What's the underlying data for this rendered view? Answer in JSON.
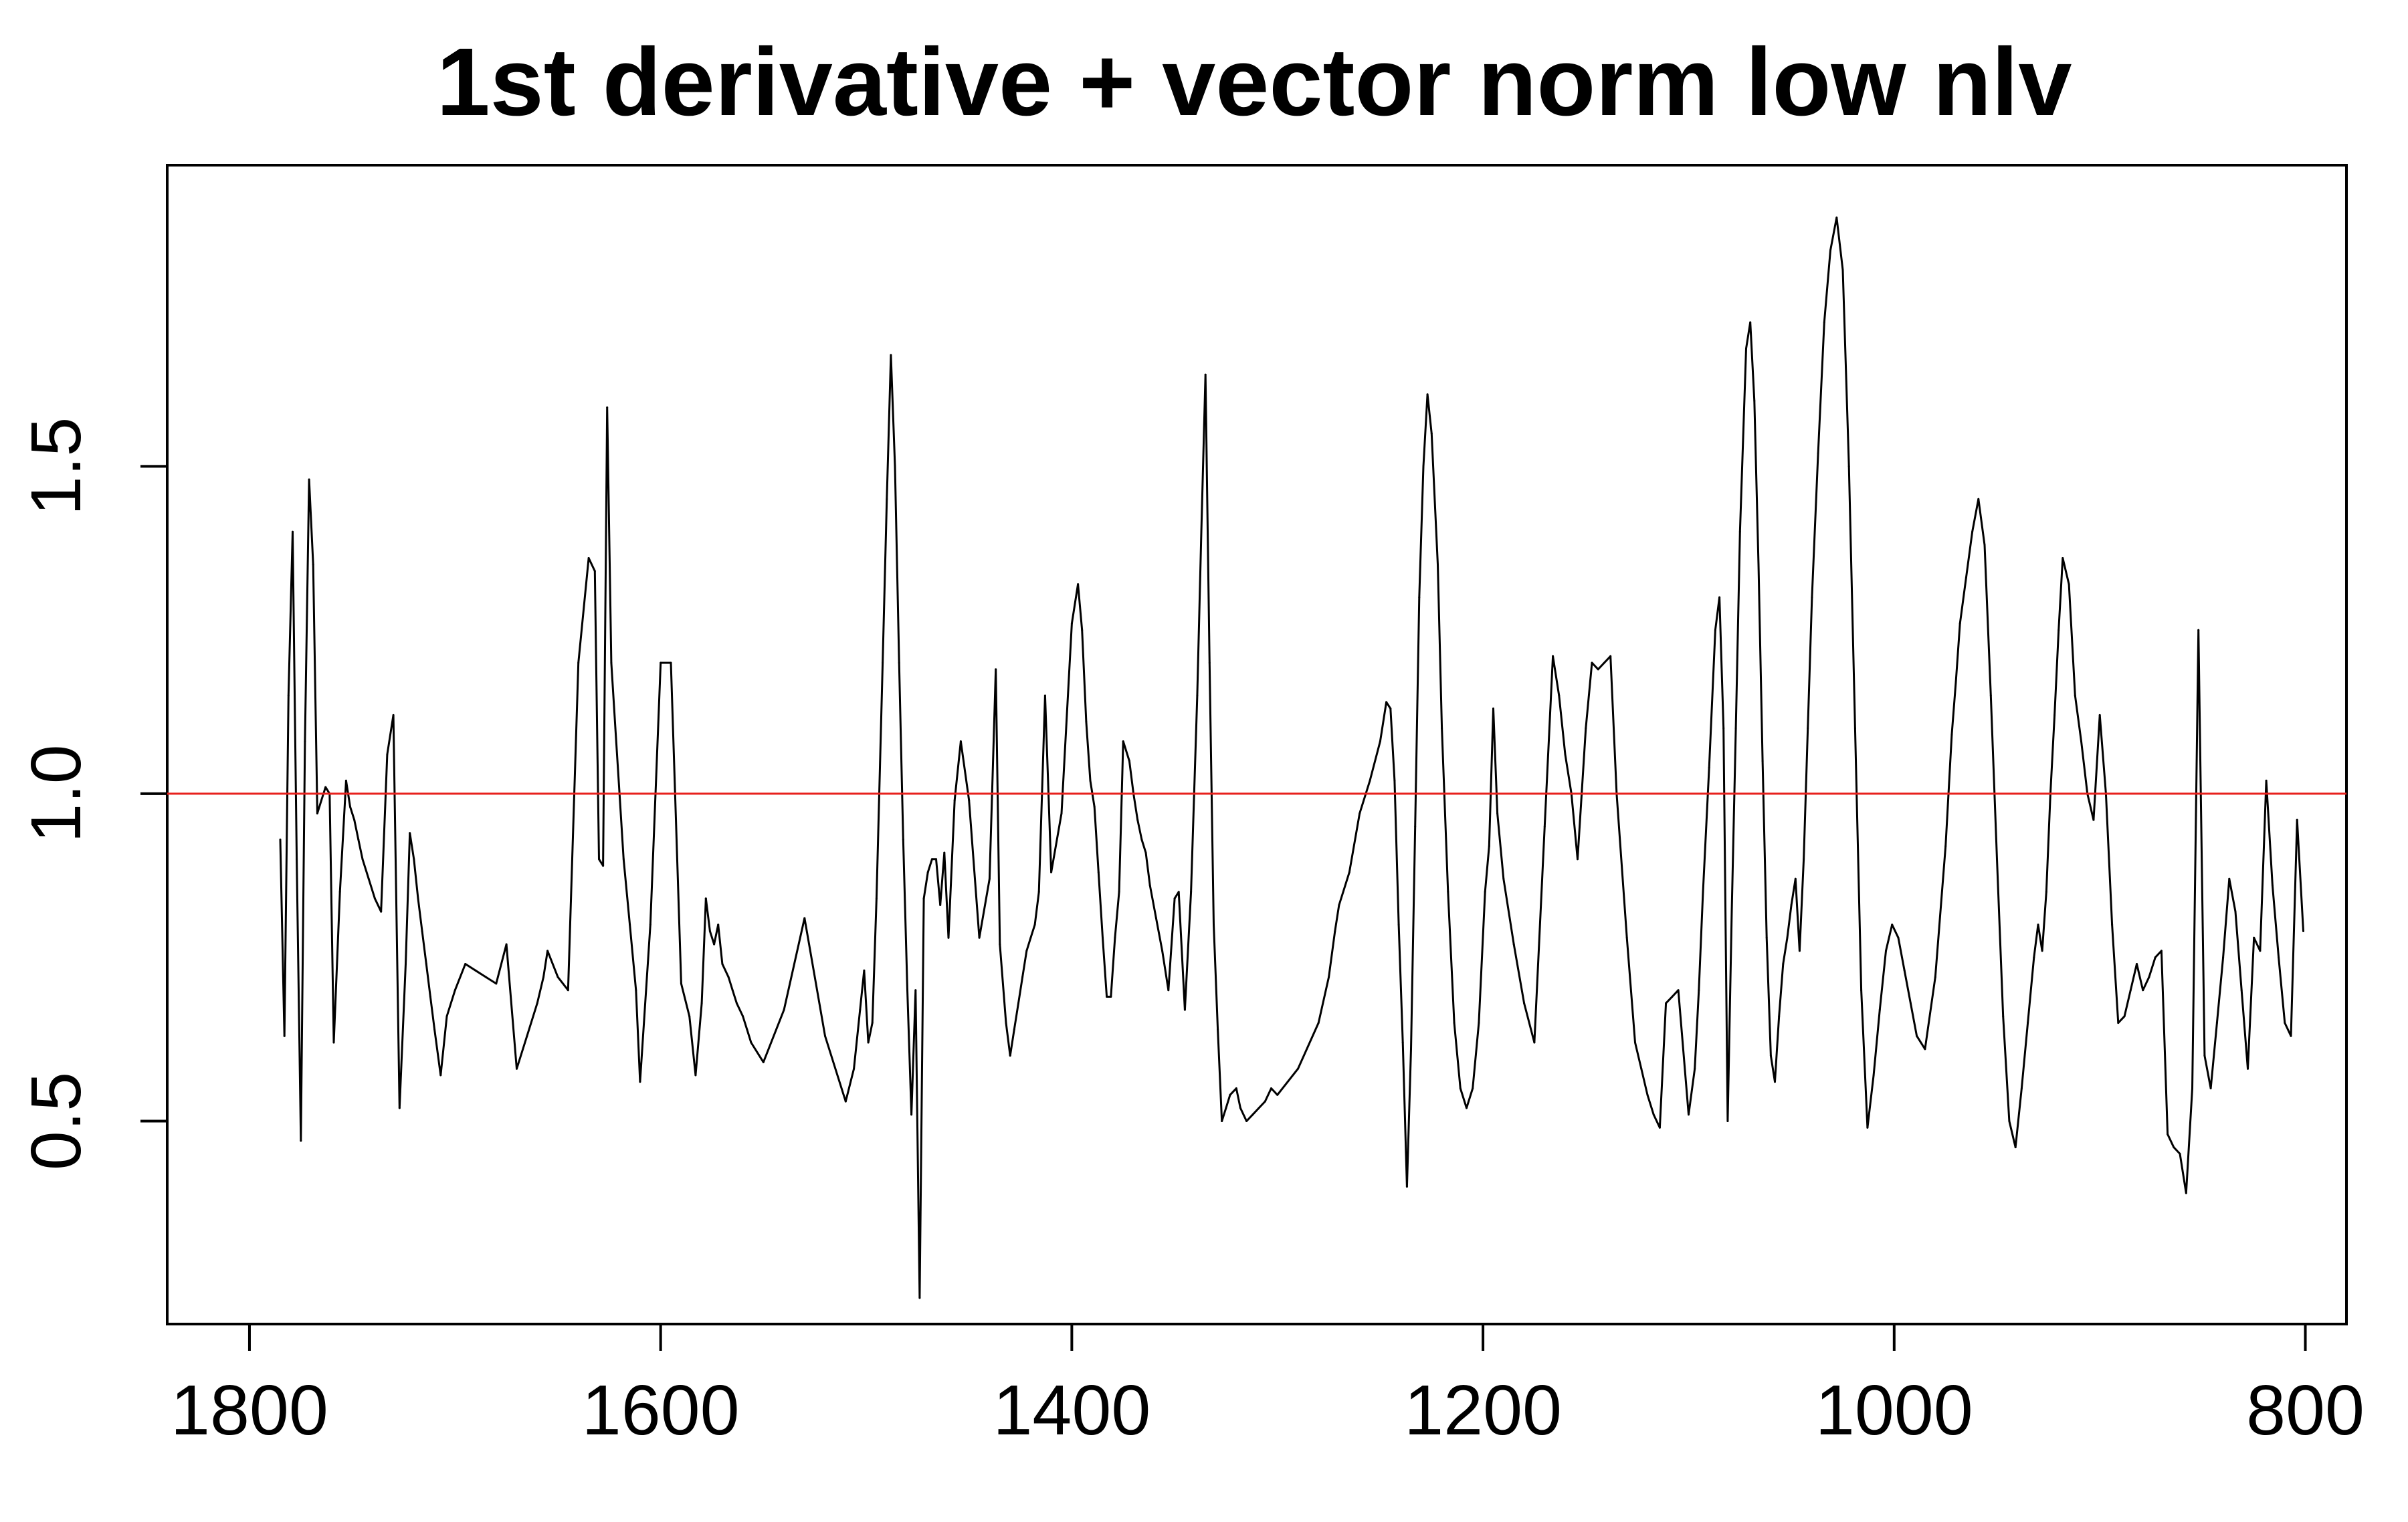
{
  "chart_data": {
    "type": "line",
    "title": "1st derivative + vector norm low nlv",
    "xlabel": "",
    "ylabel": "",
    "xlim": [
      1840,
      780
    ],
    "ylim": [
      0.19,
      1.96
    ],
    "x_reversed": true,
    "x_ticks": [
      1800,
      1600,
      1400,
      1200,
      1000,
      800
    ],
    "x_tick_labels": [
      "1800",
      "1600",
      "1400",
      "1200",
      "1000",
      "800"
    ],
    "y_ticks": [
      0.5,
      1.0,
      1.5
    ],
    "y_tick_labels": [
      "0.5",
      "1.0",
      "1.5"
    ],
    "grid": false,
    "reference_line": {
      "y": 1.0,
      "color": "#e8211d"
    },
    "line_color": "#000000",
    "series": [
      {
        "x": [
          1785,
          1783,
          1781,
          1779,
          1777,
          1775,
          1773,
          1771,
          1769,
          1767,
          1765,
          1763,
          1761,
          1759,
          1756,
          1753,
          1751,
          1749,
          1747,
          1745,
          1742,
          1739,
          1736,
          1733,
          1730,
          1727,
          1724,
          1722,
          1720,
          1718,
          1716,
          1714,
          1712,
          1710,
          1707,
          1704,
          1700,
          1695,
          1690,
          1685,
          1680,
          1675,
          1670,
          1665,
          1660,
          1657,
          1655,
          1650,
          1645,
          1640,
          1635,
          1632,
          1630,
          1628,
          1626,
          1624,
          1622,
          1620,
          1618,
          1615,
          1612,
          1610,
          1605,
          1600,
          1595,
          1590,
          1586,
          1583,
          1580,
          1578,
          1576,
          1574,
          1572,
          1570,
          1567,
          1565,
          1563,
          1560,
          1558,
          1556,
          1550,
          1540,
          1530,
          1520,
          1510,
          1506,
          1503,
          1501,
          1499,
          1497,
          1495,
          1492,
          1490,
          1488,
          1486,
          1484,
          1482,
          1480,
          1478,
          1476,
          1474,
          1472,
          1470,
          1468,
          1466,
          1464,
          1462,
          1460,
          1457,
          1454,
          1450,
          1445,
          1440,
          1437,
          1435,
          1432,
          1430,
          1428,
          1426,
          1424,
          1422,
          1420,
          1418,
          1416,
          1413,
          1410,
          1405,
          1400,
          1397,
          1395,
          1393,
          1391,
          1389,
          1387,
          1385,
          1383,
          1381,
          1379,
          1377,
          1375,
          1372,
          1370,
          1368,
          1366,
          1364,
          1362,
          1359,
          1356,
          1353,
          1350,
          1348,
          1345,
          1342,
          1339,
          1337,
          1335,
          1333,
          1331,
          1329,
          1327,
          1325,
          1323,
          1320,
          1318,
          1315,
          1312,
          1309,
          1306,
          1303,
          1300,
          1290,
          1280,
          1275,
          1272,
          1270,
          1265,
          1260,
          1255,
          1250,
          1247,
          1245,
          1243,
          1241,
          1239,
          1237,
          1235,
          1233,
          1231,
          1229,
          1227,
          1225,
          1222,
          1220,
          1217,
          1214,
          1211,
          1208,
          1205,
          1202,
          1199,
          1197,
          1195,
          1193,
          1190,
          1185,
          1180,
          1175,
          1170,
          1166,
          1163,
          1160,
          1157,
          1154,
          1150,
          1147,
          1144,
          1141,
          1138,
          1135,
          1130,
          1126,
          1123,
          1120,
          1117,
          1114,
          1111,
          1108,
          1105,
          1100,
          1097,
          1095,
          1093,
          1090,
          1087,
          1085,
          1083,
          1081,
          1079,
          1077,
          1075,
          1072,
          1070,
          1068,
          1066,
          1064,
          1062,
          1060,
          1058,
          1056,
          1054,
          1052,
          1050,
          1048,
          1046,
          1044,
          1042,
          1040,
          1037,
          1034,
          1031,
          1028,
          1025,
          1022,
          1019,
          1016,
          1013,
          1010,
          1007,
          1004,
          1001,
          998,
          995,
          992,
          989,
          985,
          980,
          975,
          972,
          970,
          968,
          965,
          962,
          959,
          956,
          953,
          950,
          947,
          944,
          941,
          938,
          935,
          932,
          930,
          928,
          926,
          924,
          922,
          920,
          918,
          915,
          912,
          909,
          906,
          903,
          900,
          897,
          894,
          891,
          888,
          885,
          882,
          879,
          876,
          873,
          870,
          867,
          864,
          861,
          858,
          855,
          852,
          849,
          846,
          843,
          840,
          837,
          834,
          831,
          828,
          825,
          822,
          819,
          816,
          813,
          810,
          807,
          804,
          801
        ],
        "values": [
          0.93,
          0.63,
          1.15,
          1.4,
          0.9,
          0.47,
          1.08,
          1.48,
          1.35,
          0.97,
          0.99,
          1.01,
          1.0,
          0.62,
          0.85,
          1.02,
          0.98,
          0.96,
          0.93,
          0.9,
          0.87,
          0.84,
          0.82,
          1.06,
          1.12,
          0.52,
          0.74,
          0.94,
          0.9,
          0.84,
          0.79,
          0.74,
          0.69,
          0.64,
          0.57,
          0.66,
          0.7,
          0.74,
          0.73,
          0.72,
          0.71,
          0.77,
          0.58,
          0.63,
          0.68,
          0.72,
          0.76,
          0.72,
          0.7,
          1.2,
          1.36,
          1.34,
          0.9,
          0.89,
          1.59,
          1.2,
          1.1,
          1.0,
          0.9,
          0.8,
          0.7,
          0.56,
          0.8,
          1.2,
          1.2,
          0.71,
          0.66,
          0.57,
          0.68,
          0.84,
          0.79,
          0.77,
          0.8,
          0.74,
          0.72,
          0.7,
          0.68,
          0.66,
          0.64,
          0.62,
          0.59,
          0.67,
          0.81,
          0.63,
          0.53,
          0.58,
          0.67,
          0.73,
          0.62,
          0.65,
          0.84,
          1.2,
          1.45,
          1.67,
          1.5,
          1.2,
          0.93,
          0.7,
          0.51,
          0.7,
          0.23,
          0.84,
          0.88,
          0.9,
          0.9,
          0.83,
          0.91,
          0.78,
          0.99,
          1.08,
          0.99,
          0.78,
          0.87,
          1.19,
          0.77,
          0.65,
          0.6,
          0.64,
          0.68,
          0.72,
          0.76,
          0.78,
          0.8,
          0.85,
          1.15,
          0.88,
          0.97,
          1.26,
          1.32,
          1.25,
          1.11,
          1.02,
          0.98,
          0.88,
          0.78,
          0.69,
          0.69,
          0.78,
          0.85,
          1.08,
          1.05,
          1.0,
          0.96,
          0.93,
          0.91,
          0.86,
          0.81,
          0.76,
          0.7,
          0.84,
          0.85,
          0.67,
          0.85,
          1.15,
          1.4,
          1.64,
          1.2,
          0.8,
          0.64,
          0.5,
          0.52,
          0.54,
          0.55,
          0.52,
          0.5,
          0.51,
          0.52,
          0.53,
          0.55,
          0.54,
          0.58,
          0.65,
          0.72,
          0.79,
          0.83,
          0.88,
          0.97,
          1.02,
          1.08,
          1.14,
          1.13,
          1.02,
          0.8,
          0.62,
          0.4,
          0.61,
          0.95,
          1.3,
          1.5,
          1.61,
          1.55,
          1.35,
          1.1,
          0.85,
          0.65,
          0.55,
          0.52,
          0.55,
          0.65,
          0.85,
          0.92,
          1.13,
          0.97,
          0.87,
          0.77,
          0.68,
          0.62,
          0.95,
          1.21,
          1.15,
          1.06,
          1.0,
          0.9,
          1.1,
          1.2,
          1.19,
          1.2,
          1.21,
          1.0,
          0.78,
          0.62,
          0.58,
          0.54,
          0.51,
          0.49,
          0.68,
          0.69,
          0.7,
          0.51,
          0.58,
          0.7,
          0.85,
          1.04,
          1.25,
          1.3,
          1.1,
          0.5,
          0.82,
          1.1,
          1.4,
          1.68,
          1.72,
          1.6,
          1.35,
          1.05,
          0.78,
          0.6,
          0.56,
          0.66,
          0.74,
          0.78,
          0.83,
          0.87,
          0.76,
          0.9,
          1.1,
          1.3,
          1.52,
          1.72,
          1.83,
          1.88,
          1.8,
          1.5,
          1.1,
          0.7,
          0.49,
          0.57,
          0.67,
          0.76,
          0.8,
          0.78,
          0.73,
          0.68,
          0.63,
          0.61,
          0.72,
          0.92,
          1.09,
          1.17,
          1.26,
          1.33,
          1.4,
          1.45,
          1.38,
          1.15,
          0.9,
          0.66,
          0.5,
          0.46,
          0.55,
          0.65,
          0.75,
          0.8,
          0.76,
          0.85,
          1.0,
          1.12,
          1.25,
          1.36,
          1.32,
          1.15,
          1.08,
          1.0,
          0.96,
          1.12,
          1.0,
          0.8,
          0.65,
          0.66,
          0.7,
          0.74,
          0.7,
          0.72,
          0.75,
          0.76,
          0.48,
          0.46,
          0.45,
          0.39,
          0.55,
          1.25,
          0.6,
          0.55,
          0.65,
          0.75,
          0.87,
          0.82,
          0.7,
          0.58,
          0.78,
          0.76,
          1.02,
          0.86,
          0.75,
          0.65,
          0.63,
          0.96,
          0.79
        ]
      }
    ]
  }
}
